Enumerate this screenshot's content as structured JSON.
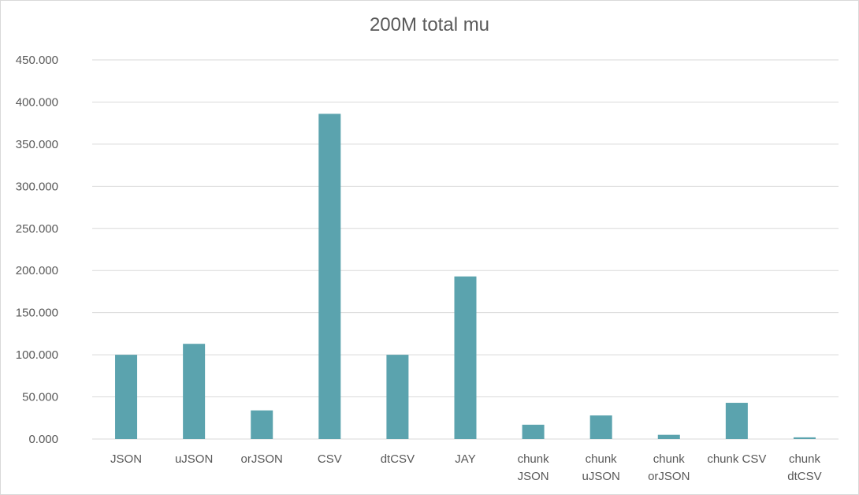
{
  "chart_data": {
    "type": "bar",
    "title": "200M total mu",
    "xlabel": "",
    "ylabel": "",
    "ylim": [
      0,
      450
    ],
    "yticks": [
      0,
      50,
      100,
      150,
      200,
      250,
      300,
      350,
      400,
      450
    ],
    "ytick_labels": [
      "0.000",
      "50.000",
      "100.000",
      "150.000",
      "200.000",
      "250.000",
      "300.000",
      "350.000",
      "400.000",
      "450.000"
    ],
    "grid": true,
    "legend": "none",
    "bar_color": "#5ba3ae",
    "categories": [
      "JSON",
      "uJSON",
      "orJSON",
      "CSV",
      "dtCSV",
      "JAY",
      "chunk JSON",
      "chunk uJSON",
      "chunk orJSON",
      "chunk CSV",
      "chunk dtCSV"
    ],
    "category_lines": [
      [
        "JSON"
      ],
      [
        "uJSON"
      ],
      [
        "orJSON"
      ],
      [
        "CSV"
      ],
      [
        "dtCSV"
      ],
      [
        "JAY"
      ],
      [
        "chunk",
        "JSON"
      ],
      [
        "chunk",
        "uJSON"
      ],
      [
        "chunk",
        "orJSON"
      ],
      [
        "chunk CSV"
      ],
      [
        "chunk",
        "dtCSV"
      ]
    ],
    "values": [
      100,
      113,
      34,
      386,
      100,
      193,
      17,
      28,
      5,
      43,
      2
    ]
  }
}
